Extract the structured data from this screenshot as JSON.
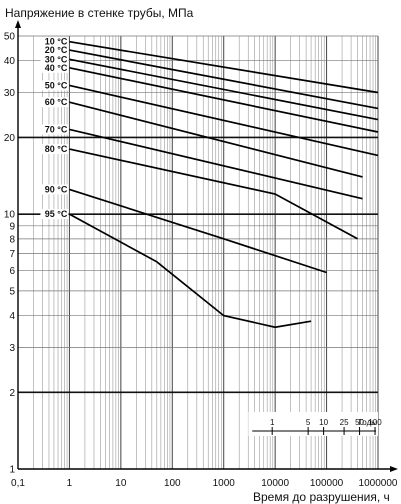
{
  "chart_data": {
    "type": "line",
    "ylabel": "Напряжение в стенке трубы, МПа",
    "xlabel": "Время до разрушения, ч",
    "x_scale": "log",
    "y_scale": "log",
    "xlim": [
      0.1,
      1000000
    ],
    "ylim": [
      1,
      50
    ],
    "x_ticks": [
      "0,1",
      "1",
      "10",
      "100",
      "1000",
      "10000",
      "100000",
      "1000000"
    ],
    "y_ticks": [
      "1",
      "2",
      "3",
      "4",
      "5",
      "6",
      "7",
      "8",
      "9",
      "10",
      "20",
      "30",
      "40",
      "50"
    ],
    "grid": true,
    "years_scale": {
      "label": "Годы",
      "ticks": [
        {
          "label": "1",
          "hours": 8760
        },
        {
          "label": "5",
          "hours": 43800
        },
        {
          "label": "10",
          "hours": 87600
        },
        {
          "label": "25",
          "hours": 219000
        },
        {
          "label": "50",
          "hours": 438000
        },
        {
          "label": "100",
          "hours": 876000
        }
      ]
    },
    "series": [
      {
        "name": "10 °C",
        "points": [
          [
            1,
            47.5
          ],
          [
            1000000,
            30
          ]
        ]
      },
      {
        "name": "20 °C",
        "points": [
          [
            1,
            44
          ],
          [
            1000000,
            26
          ]
        ]
      },
      {
        "name": "30 °C",
        "points": [
          [
            1,
            40.5
          ],
          [
            1000000,
            23.5
          ]
        ]
      },
      {
        "name": "40 °C",
        "points": [
          [
            1,
            37.5
          ],
          [
            1000000,
            21
          ]
        ]
      },
      {
        "name": "50 °C",
        "points": [
          [
            1,
            32
          ],
          [
            1000000,
            17
          ]
        ]
      },
      {
        "name": "60 °C",
        "points": [
          [
            1,
            27.5
          ],
          [
            500000,
            14
          ]
        ]
      },
      {
        "name": "70 °C",
        "points": [
          [
            1,
            21.5
          ],
          [
            500000,
            11.5
          ]
        ]
      },
      {
        "name": "80 °C",
        "points": [
          [
            1,
            18
          ],
          [
            10000,
            12
          ],
          [
            400000,
            8
          ]
        ]
      },
      {
        "name": "90 °C",
        "points": [
          [
            1,
            12.5
          ],
          [
            1000,
            8
          ],
          [
            100000,
            5.9
          ]
        ]
      },
      {
        "name": "95 °C",
        "points": [
          [
            1,
            10
          ],
          [
            50,
            6.5
          ],
          [
            1000,
            4
          ],
          [
            10000,
            3.6
          ],
          [
            50000,
            3.8
          ]
        ]
      }
    ]
  }
}
